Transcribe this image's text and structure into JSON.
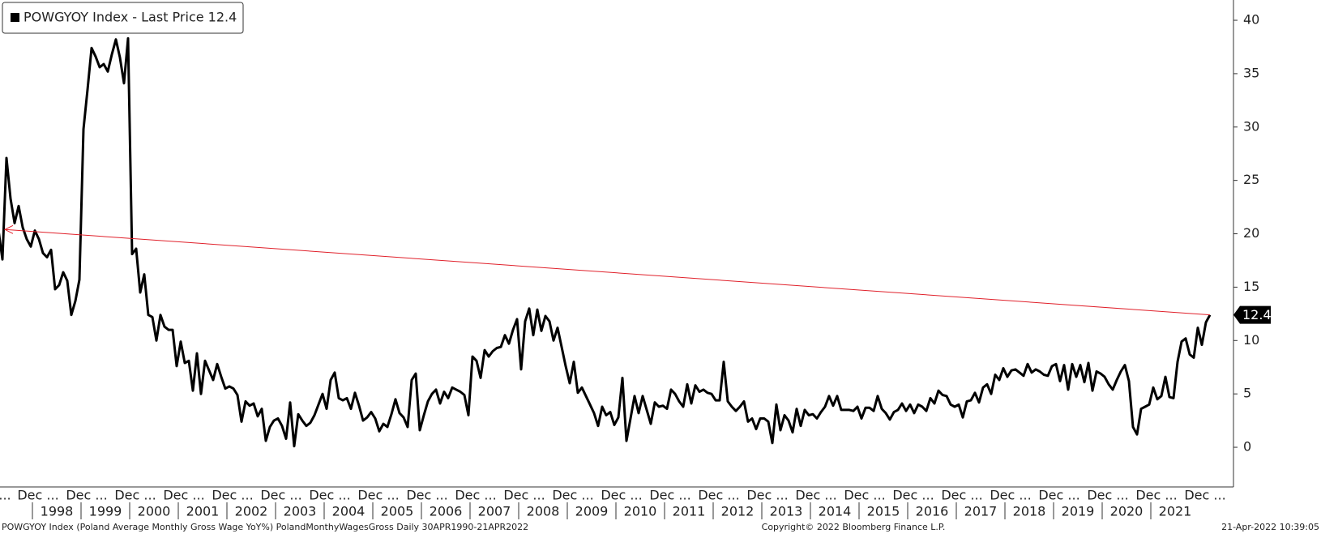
{
  "chart_data": {
    "type": "line",
    "legend": "POWGYOY Index - Last Price 12.4",
    "legend_position": "top-left",
    "x": [
      "1997-04",
      "1997-05",
      "1997-06",
      "1997-07",
      "1997-08",
      "1997-09",
      "1997-10",
      "1997-11",
      "1997-12",
      "1998-01",
      "1998-02",
      "1998-03",
      "1998-04",
      "1998-05",
      "1998-06",
      "1998-07",
      "1998-08",
      "1998-09",
      "1998-10",
      "1998-11",
      "1998-12",
      "1999-01",
      "1999-02",
      "1999-03",
      "1999-04",
      "1999-05",
      "1999-06",
      "1999-07",
      "1999-08",
      "1999-09",
      "1999-10",
      "1999-11",
      "1999-12",
      "2000-01",
      "2000-02",
      "2000-03",
      "2000-04",
      "2000-05",
      "2000-06",
      "2000-07",
      "2000-08",
      "2000-09",
      "2000-10",
      "2000-11",
      "2000-12",
      "2001-01",
      "2001-02",
      "2001-03",
      "2001-04",
      "2001-05",
      "2001-06",
      "2001-07",
      "2001-08",
      "2001-09",
      "2001-10",
      "2001-11",
      "2001-12",
      "2002-01",
      "2002-02",
      "2002-03",
      "2002-04",
      "2002-05",
      "2002-06",
      "2002-07",
      "2002-08",
      "2002-09",
      "2002-10",
      "2002-11",
      "2002-12",
      "2003-01",
      "2003-02",
      "2003-03",
      "2003-04",
      "2003-05",
      "2003-06",
      "2003-07",
      "2003-08",
      "2003-09",
      "2003-10",
      "2003-11",
      "2003-12",
      "2004-01",
      "2004-02",
      "2004-03",
      "2004-04",
      "2004-05",
      "2004-06",
      "2004-07",
      "2004-08",
      "2004-09",
      "2004-10",
      "2004-11",
      "2004-12",
      "2005-01",
      "2005-02",
      "2005-03",
      "2005-04",
      "2005-05",
      "2005-06",
      "2005-07",
      "2005-08",
      "2005-09",
      "2005-10",
      "2005-11",
      "2005-12",
      "2006-01",
      "2006-02",
      "2006-03",
      "2006-04",
      "2006-05",
      "2006-06",
      "2006-07",
      "2006-08",
      "2006-09",
      "2006-10",
      "2006-11",
      "2006-12",
      "2007-01",
      "2007-02",
      "2007-03",
      "2007-04",
      "2007-05",
      "2007-06",
      "2007-07",
      "2007-08",
      "2007-09",
      "2007-10",
      "2007-11",
      "2007-12",
      "2008-01",
      "2008-02",
      "2008-03",
      "2008-04",
      "2008-05",
      "2008-06",
      "2008-07",
      "2008-08",
      "2008-09",
      "2008-10",
      "2008-11",
      "2008-12",
      "2009-01",
      "2009-02",
      "2009-03",
      "2009-04",
      "2009-05",
      "2009-06",
      "2009-07",
      "2009-08",
      "2009-09",
      "2009-10",
      "2009-11",
      "2009-12",
      "2010-01",
      "2010-02",
      "2010-03",
      "2010-04",
      "2010-05",
      "2010-06",
      "2010-07",
      "2010-08",
      "2010-09",
      "2010-10",
      "2010-11",
      "2010-12",
      "2011-01",
      "2011-02",
      "2011-03",
      "2011-04",
      "2011-05",
      "2011-06",
      "2011-07",
      "2011-08",
      "2011-09",
      "2011-10",
      "2011-11",
      "2011-12",
      "2012-01",
      "2012-02",
      "2012-03",
      "2012-04",
      "2012-05",
      "2012-06",
      "2012-07",
      "2012-08",
      "2012-09",
      "2012-10",
      "2012-11",
      "2012-12",
      "2013-01",
      "2013-02",
      "2013-03",
      "2013-04",
      "2013-05",
      "2013-06",
      "2013-07",
      "2013-08",
      "2013-09",
      "2013-10",
      "2013-11",
      "2013-12",
      "2014-01",
      "2014-02",
      "2014-03",
      "2014-04",
      "2014-05",
      "2014-06",
      "2014-07",
      "2014-08",
      "2014-09",
      "2014-10",
      "2014-11",
      "2014-12",
      "2015-01",
      "2015-02",
      "2015-03",
      "2015-04",
      "2015-05",
      "2015-06",
      "2015-07",
      "2015-08",
      "2015-09",
      "2015-10",
      "2015-11",
      "2015-12",
      "2016-01",
      "2016-02",
      "2016-03",
      "2016-04",
      "2016-05",
      "2016-06",
      "2016-07",
      "2016-08",
      "2016-09",
      "2016-10",
      "2016-11",
      "2016-12",
      "2017-01",
      "2017-02",
      "2017-03",
      "2017-04",
      "2017-05",
      "2017-06",
      "2017-07",
      "2017-08",
      "2017-09",
      "2017-10",
      "2017-11",
      "2017-12",
      "2018-01",
      "2018-02",
      "2018-03",
      "2018-04",
      "2018-05",
      "2018-06",
      "2018-07",
      "2018-08",
      "2018-09",
      "2018-10",
      "2018-11",
      "2018-12",
      "2019-01",
      "2019-02",
      "2019-03",
      "2019-04",
      "2019-05",
      "2019-06",
      "2019-07",
      "2019-08",
      "2019-09",
      "2019-10",
      "2019-11",
      "2019-12",
      "2020-01",
      "2020-02",
      "2020-03",
      "2020-04",
      "2020-05",
      "2020-06",
      "2020-07",
      "2020-08",
      "2020-09",
      "2020-10",
      "2020-11",
      "2020-12",
      "2021-01",
      "2021-02",
      "2021-03",
      "2021-04",
      "2021-05",
      "2021-06",
      "2021-07",
      "2021-08",
      "2021-09",
      "2021-10",
      "2021-11",
      "2021-12",
      "2022-01",
      "2022-02",
      "2022-03"
    ],
    "series": [
      {
        "name": "POWGYOY Index - Last Price 12.4",
        "color": "#000000",
        "values": [
          20.4,
          17.6,
          27.1,
          23.3,
          21.0,
          22.6,
          20.6,
          19.5,
          18.8,
          20.3,
          19.5,
          18.2,
          17.8,
          18.5,
          14.8,
          15.2,
          16.4,
          15.6,
          12.4,
          13.7,
          15.7,
          29.8,
          33.5,
          37.4,
          36.6,
          35.6,
          35.9,
          35.2,
          36.8,
          38.2,
          36.5,
          34.1,
          38.3,
          18.1,
          18.6,
          14.5,
          16.2,
          12.4,
          12.2,
          10.0,
          12.4,
          11.3,
          11.0,
          11.0,
          7.6,
          9.9,
          7.9,
          8.1,
          5.3,
          8.8,
          5.0,
          8.1,
          7.2,
          6.3,
          7.8,
          6.6,
          5.5,
          5.7,
          5.5,
          4.9,
          2.4,
          4.3,
          3.9,
          4.1,
          2.9,
          3.6,
          0.6,
          1.9,
          2.5,
          2.7,
          2.0,
          0.8,
          4.2,
          0.1,
          3.1,
          2.5,
          2.0,
          2.3,
          3.0,
          4.0,
          5.0,
          3.6,
          6.3,
          7.0,
          4.6,
          4.4,
          4.6,
          3.6,
          5.1,
          3.9,
          2.5,
          2.8,
          3.3,
          2.7,
          1.5,
          2.2,
          1.9,
          3.1,
          4.5,
          3.2,
          2.8,
          1.9,
          6.3,
          6.9,
          1.6,
          3.0,
          4.3,
          5.0,
          5.4,
          4.1,
          5.2,
          4.6,
          5.6,
          5.4,
          5.2,
          4.9,
          3.0,
          8.5,
          8.1,
          6.5,
          9.1,
          8.5,
          9.0,
          9.3,
          9.4,
          10.5,
          9.7,
          11.0,
          12.0,
          7.3,
          11.8,
          13.0,
          10.5,
          12.9,
          10.9,
          12.3,
          11.8,
          10.0,
          11.2,
          9.4,
          7.6,
          6.0,
          8.0,
          5.1,
          5.6,
          4.8,
          4.0,
          3.2,
          2.0,
          3.8,
          3.0,
          3.3,
          2.1,
          2.8,
          6.5,
          0.6,
          2.7,
          4.8,
          3.2,
          4.8,
          3.5,
          2.2,
          4.2,
          3.8,
          3.9,
          3.6,
          5.4,
          5.0,
          4.3,
          3.8,
          5.9,
          4.1,
          5.8,
          5.2,
          5.4,
          5.1,
          5.0,
          4.4,
          4.4,
          8.0,
          4.3,
          3.8,
          3.4,
          3.8,
          4.3,
          2.4,
          2.7,
          1.7,
          2.7,
          2.7,
          2.4,
          0.4,
          4.0,
          1.6,
          3.0,
          2.5,
          1.4,
          3.6,
          2.0,
          3.5,
          3.0,
          3.1,
          2.7,
          3.3,
          3.8,
          4.8,
          3.9,
          4.8,
          3.5,
          3.5,
          3.5,
          3.4,
          3.8,
          2.7,
          3.7,
          3.7,
          3.4,
          4.8,
          3.6,
          3.2,
          2.6,
          3.3,
          3.5,
          4.1,
          3.4,
          4.0,
          3.2,
          4.0,
          3.8,
          3.4,
          4.6,
          4.1,
          5.3,
          4.9,
          4.8,
          4.0,
          3.8,
          4.0,
          2.8,
          4.3,
          4.4,
          5.1,
          4.2,
          5.6,
          5.9,
          5.0,
          6.8,
          6.3,
          7.4,
          6.6,
          7.2,
          7.3,
          7.0,
          6.7,
          7.8,
          7.0,
          7.3,
          7.1,
          6.8,
          6.7,
          7.6,
          7.8,
          6.2,
          7.7,
          5.4,
          7.8,
          6.6,
          7.7,
          6.1,
          7.9,
          5.3,
          7.1,
          6.9,
          6.6,
          5.9,
          5.4,
          6.3,
          7.1,
          7.7,
          6.2,
          1.9,
          1.2,
          3.6,
          3.8,
          4.0,
          5.6,
          4.5,
          4.8,
          6.6,
          4.7,
          4.6,
          8.0,
          9.9,
          10.2,
          8.7,
          8.4,
          11.2,
          9.6,
          11.7,
          12.4
        ]
      }
    ],
    "annotation_color": "#e0202a",
    "ylim": [
      -3.64,
      41.9
    ],
    "yticks": [
      0,
      5,
      10,
      15,
      20,
      25,
      30,
      35,
      40
    ],
    "x_month_labels": [
      "...",
      "Dec ...",
      "Dec ...",
      "Dec ...",
      "Dec ...",
      "Dec ...",
      "Dec ...",
      "Dec ...",
      "Dec ...",
      "Dec ...",
      "Dec ...",
      "Dec ...",
      "Dec ...",
      "Dec ...",
      "Dec ...",
      "Dec ...",
      "Dec ...",
      "Dec ...",
      "Dec ...",
      "Dec ...",
      "Dec ...",
      "Dec ...",
      "Dec ...",
      "Dec ...",
      "Dec ...",
      "Dec ..."
    ],
    "x_year_labels": [
      "1998",
      "1999",
      "2000",
      "2001",
      "2002",
      "2003",
      "2004",
      "2005",
      "2006",
      "2007",
      "2008",
      "2009",
      "2010",
      "2011",
      "2012",
      "2013",
      "2014",
      "2015",
      "2016",
      "2017",
      "2018",
      "2019",
      "2020",
      "2021"
    ],
    "footer_left": "POWGYOY Index (Poland Average Monthly Gross Wage YoY%) PolandMonthyWagesGross  Daily 30APR1990-21APR2022",
    "footer_center": "Copyright© 2022 Bloomberg Finance L.P.",
    "footer_right": "21-Apr-2022 10:39:05"
  }
}
